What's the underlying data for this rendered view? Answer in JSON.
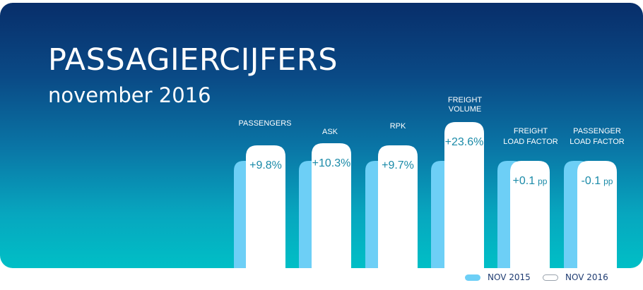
{
  "header": {
    "title": "PASSAGIERCIJFERS",
    "subtitle": "november 2016"
  },
  "chart_data": {
    "type": "bar",
    "categories": [
      [
        "PASSENGERS"
      ],
      [
        "ASK"
      ],
      [
        "RPK"
      ],
      [
        "FREIGHT",
        "VOLUME"
      ],
      [
        "FREIGHT",
        "LOAD FACTOR"
      ],
      [
        "PASSENGER",
        "LOAD FACTOR"
      ]
    ],
    "series": [
      {
        "name": "NOV 2015",
        "color": "#6dcff6",
        "values": [
          1,
          1,
          1,
          1,
          1,
          1
        ]
      },
      {
        "name": "NOV 2016",
        "color": "#ffffff",
        "values": [
          1.098,
          1.103,
          1.097,
          1.236,
          1.001,
          0.999
        ]
      }
    ],
    "data_labels": [
      {
        "value": "+9.8%",
        "unit": ""
      },
      {
        "value": "+10.3%",
        "unit": ""
      },
      {
        "value": "+9.7%",
        "unit": ""
      },
      {
        "value": "+23.6%",
        "unit": ""
      },
      {
        "value": "+0.1",
        "unit": "pp"
      },
      {
        "value": "-0.1",
        "unit": "pp"
      }
    ],
    "label_color": "#1a8aa8"
  },
  "legend": {
    "items": [
      {
        "label": "NOV 2015",
        "style": "old"
      },
      {
        "label": "NOV 2016",
        "style": "new"
      }
    ]
  }
}
